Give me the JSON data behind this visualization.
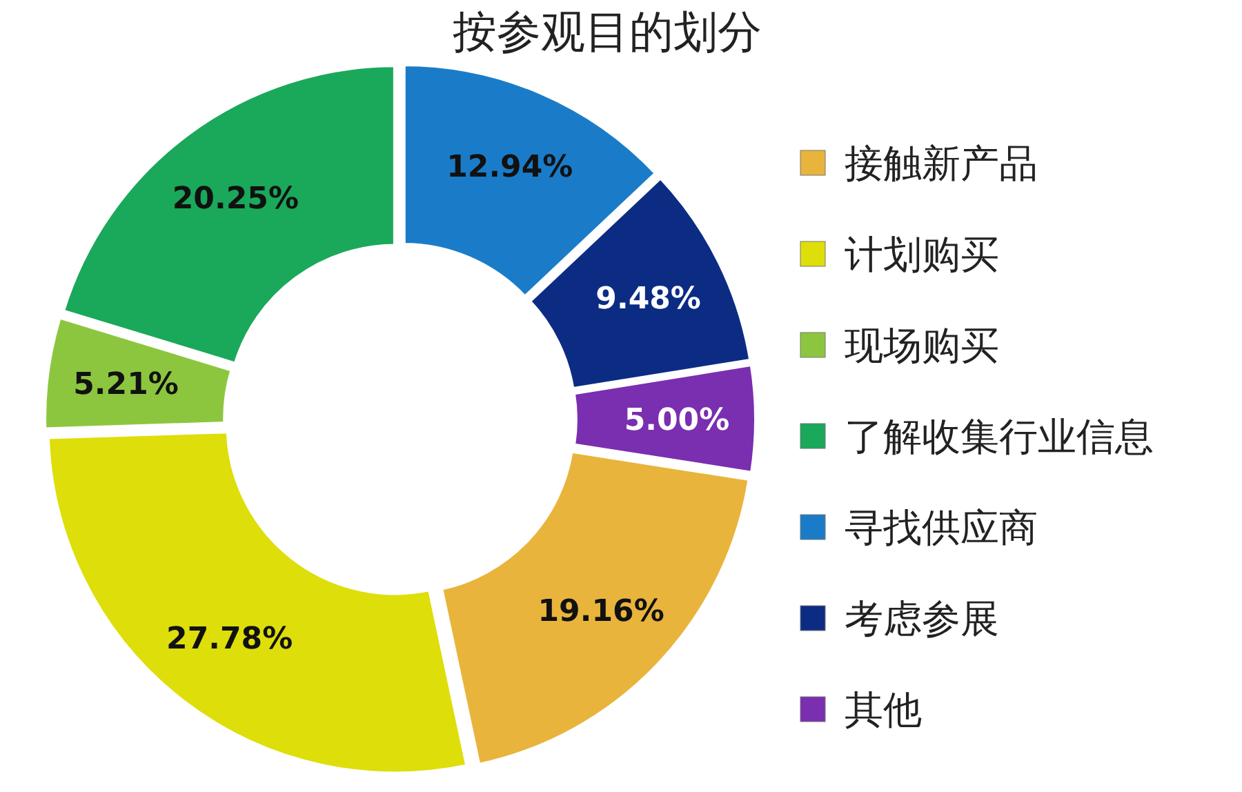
{
  "chart_data": {
    "type": "donut",
    "title": "按参观目的划分",
    "categories": [
      "接触新产品",
      "计划购买",
      "现场购买",
      "了解收集行业信息",
      "寻找供应商",
      "考虑参展",
      "其他"
    ],
    "values": [
      19.16,
      27.78,
      5.21,
      20.25,
      12.94,
      9.48,
      5.0
    ],
    "colors": [
      "#e8b43c",
      "#dede0a",
      "#8cc63f",
      "#1aa85a",
      "#1a7cc8",
      "#0c2c84",
      "#7a2eb0"
    ],
    "value_labels": [
      "19.16%",
      "27.78%",
      "5.21%",
      "20.25%",
      "12.94%",
      "9.48%",
      "5.00%"
    ],
    "legend": "right"
  }
}
